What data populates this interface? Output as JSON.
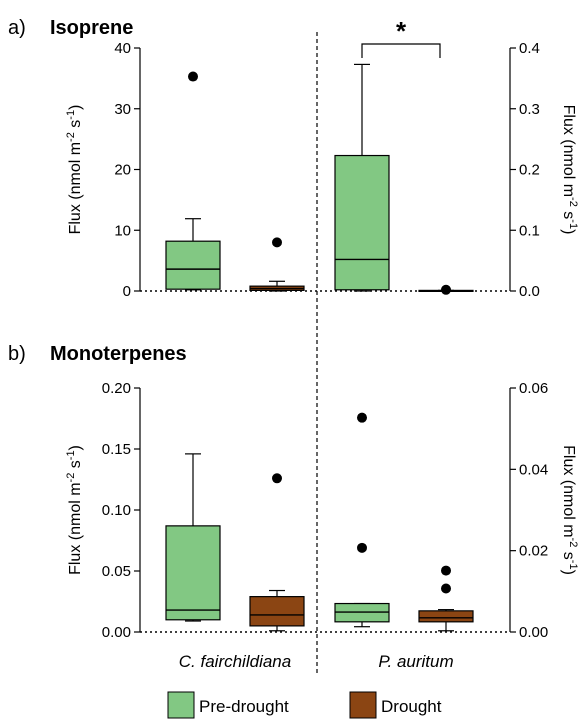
{
  "colors": {
    "pre_drought": "#82c883",
    "drought": "#8b4513",
    "stroke": "#000000"
  },
  "legend": [
    "Pre-drought",
    "Drought"
  ],
  "categories": [
    "C. fairchildiana",
    "P. auritum"
  ],
  "chart_data": [
    {
      "type": "box",
      "panel_label": "a)",
      "title": "Isoprene",
      "left_axis": {
        "label": "Flux (nmol m-2 s-1)",
        "ticks": [
          "0",
          "10",
          "20",
          "30",
          "40"
        ],
        "ylim": [
          0,
          40
        ]
      },
      "right_axis": {
        "label": "Flux (nmol m-2 s-1)",
        "ticks": [
          "0.0",
          "0.1",
          "0.2",
          "0.3",
          "0.4"
        ],
        "ylim": [
          0,
          0.4
        ]
      },
      "significance": "*",
      "boxes": [
        {
          "category": "C. fairchildiana",
          "series": "Pre-drought",
          "axis": "left",
          "min": 0.2,
          "q1": 0.3,
          "median": 3.6,
          "q3": 8.2,
          "max": 11.9,
          "outliers": [
            35.3
          ]
        },
        {
          "category": "C. fairchildiana",
          "series": "Drought",
          "axis": "left",
          "min": 0.0,
          "q1": 0.1,
          "median": 0.4,
          "q3": 0.8,
          "max": 1.6,
          "outliers": [
            8.0
          ]
        },
        {
          "category": "P. auritum",
          "series": "Pre-drought",
          "axis": "right",
          "min": 0.0,
          "q1": 0.002,
          "median": 0.052,
          "q3": 0.223,
          "max": 0.373,
          "outliers": []
        },
        {
          "category": "P. auritum",
          "series": "Drought",
          "axis": "right",
          "min": 0.0,
          "q1": 0.0,
          "median": 0.0,
          "q3": 0.001,
          "max": 0.001,
          "outliers": [
            0.002
          ]
        }
      ]
    },
    {
      "type": "box",
      "panel_label": "b)",
      "title": "Monoterpenes",
      "left_axis": {
        "label": "Flux (nmol m-2 s-1)",
        "ticks": [
          "0.00",
          "0.05",
          "0.10",
          "0.15",
          "0.20"
        ],
        "ylim": [
          0,
          0.2
        ]
      },
      "right_axis": {
        "label": "Flux (nmol m-2 s-1)",
        "ticks": [
          "0.00",
          "0.02",
          "0.04",
          "0.06"
        ],
        "ylim": [
          0,
          0.06
        ]
      },
      "boxes": [
        {
          "category": "C. fairchildiana",
          "series": "Pre-drought",
          "axis": "left",
          "min": 0.009,
          "q1": 0.01,
          "median": 0.018,
          "q3": 0.087,
          "max": 0.146,
          "outliers": []
        },
        {
          "category": "C. fairchildiana",
          "series": "Drought",
          "axis": "left",
          "min": 0.001,
          "q1": 0.005,
          "median": 0.014,
          "q3": 0.029,
          "max": 0.034,
          "outliers": [
            0.126
          ]
        },
        {
          "category": "P. auritum",
          "series": "Pre-drought",
          "axis": "right",
          "min": 0.0013,
          "q1": 0.0025,
          "median": 0.0049,
          "q3": 0.007,
          "max": 0.007,
          "outliers": [
            0.0207,
            0.0527
          ]
        },
        {
          "category": "P. auritum",
          "series": "Drought",
          "axis": "right",
          "min": 0.0003,
          "q1": 0.0025,
          "median": 0.0035,
          "q3": 0.0052,
          "max": 0.0055,
          "outliers": [
            0.0107,
            0.0151
          ]
        }
      ]
    }
  ]
}
